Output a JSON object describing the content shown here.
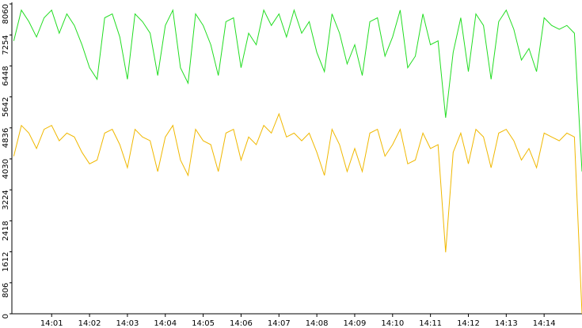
{
  "chart_data": {
    "type": "line",
    "x": [
      0,
      0.2,
      0.4,
      0.6,
      0.8,
      1,
      1.2,
      1.4,
      1.6,
      1.8,
      2,
      2.2,
      2.4,
      2.6,
      2.8,
      3,
      3.2,
      3.4,
      3.6,
      3.8,
      4,
      4.2,
      4.4,
      4.6,
      4.8,
      5,
      5.2,
      5.4,
      5.6,
      5.8,
      6,
      6.2,
      6.4,
      6.6,
      6.8,
      7,
      7.2,
      7.4,
      7.6,
      7.8,
      8,
      8.2,
      8.4,
      8.6,
      8.8,
      9,
      9.2,
      9.4,
      9.6,
      9.8,
      10,
      10.2,
      10.4,
      10.6,
      10.8,
      11,
      11.2,
      11.4,
      11.6,
      11.8,
      12,
      12.2,
      12.4,
      12.6,
      12.8,
      13,
      13.2,
      13.4,
      13.6,
      13.8,
      14,
      14.2,
      14.4,
      14.6,
      14.8,
      15
    ],
    "series": [
      {
        "color": "#22dd22",
        "values": [
          7100,
          7900,
          7600,
          7200,
          7700,
          7900,
          7300,
          7800,
          7500,
          7000,
          6400,
          6100,
          7700,
          7800,
          7200,
          6100,
          7800,
          7600,
          7300,
          6200,
          7500,
          7900,
          6400,
          6000,
          7800,
          7500,
          7000,
          6200,
          7600,
          7700,
          6400,
          7300,
          7000,
          7900,
          7500,
          7800,
          7200,
          7900,
          7300,
          7600,
          6800,
          6300,
          7800,
          7300,
          6500,
          7000,
          6200,
          7600,
          7700,
          6700,
          7200,
          7900,
          6400,
          6700,
          7800,
          7000,
          7100,
          5100,
          6800,
          7700,
          6300,
          7800,
          7500,
          6100,
          7600,
          7900,
          7400,
          6600,
          6900,
          6300,
          7700,
          7500,
          7400,
          7500,
          7300,
          3700
        ]
      },
      {
        "color": "#f0b800",
        "values": [
          4100,
          4900,
          4700,
          4300,
          4800,
          4900,
          4500,
          4700,
          4600,
          4200,
          3900,
          4000,
          4700,
          4800,
          4400,
          3800,
          4800,
          4600,
          4500,
          3700,
          4600,
          4900,
          4000,
          3600,
          4800,
          4500,
          4400,
          3700,
          4700,
          4800,
          4000,
          4600,
          4400,
          4900,
          4700,
          5200,
          4600,
          4700,
          4500,
          4700,
          4200,
          3600,
          4800,
          4400,
          3700,
          4300,
          3700,
          4700,
          4800,
          4100,
          4400,
          4800,
          3900,
          4000,
          4700,
          4300,
          4400,
          1600,
          4200,
          4700,
          3900,
          4800,
          4600,
          3800,
          4700,
          4800,
          4500,
          4000,
          4300,
          3800,
          4700,
          4600,
          4500,
          4700,
          4600,
          0
        ]
      }
    ],
    "xlim": [
      -0.05,
      15
    ],
    "xticks": [
      {
        "value": 1,
        "label": "14:01"
      },
      {
        "value": 2,
        "label": "14:02"
      },
      {
        "value": 3,
        "label": "14:03"
      },
      {
        "value": 4,
        "label": "14:04"
      },
      {
        "value": 5,
        "label": "14:05"
      },
      {
        "value": 6,
        "label": "14:06"
      },
      {
        "value": 7,
        "label": "14:07"
      },
      {
        "value": 8,
        "label": "14:08"
      },
      {
        "value": 9,
        "label": "14:09"
      },
      {
        "value": 10,
        "label": "14:10"
      },
      {
        "value": 11,
        "label": "14:11"
      },
      {
        "value": 12,
        "label": "14:12"
      },
      {
        "value": 13,
        "label": "14:13"
      },
      {
        "value": 14,
        "label": "14:14"
      }
    ],
    "ylim": [
      0,
      8060
    ],
    "yticks": [
      0,
      806,
      1612,
      2418,
      3224,
      4030,
      4836,
      5642,
      6448,
      7254,
      8060
    ]
  }
}
